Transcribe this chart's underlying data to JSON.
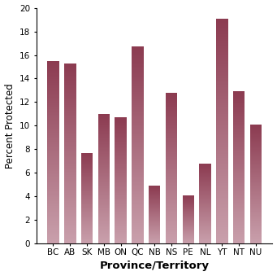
{
  "categories": [
    "BC",
    "AB",
    "SK",
    "MB",
    "ON",
    "QC",
    "NB",
    "NS",
    "PE",
    "NL",
    "YT",
    "NT",
    "NU"
  ],
  "values": [
    15.5,
    15.3,
    7.7,
    11.0,
    10.7,
    16.7,
    4.9,
    12.8,
    4.1,
    6.8,
    19.1,
    12.9,
    10.1
  ],
  "bar_color_top": "#8b3a50",
  "bar_color_bottom": "#c9a0ac",
  "xlabel": "Province/Territory",
  "ylabel": "Percent Protected",
  "ylim": [
    0,
    20
  ],
  "yticks": [
    0,
    2,
    4,
    6,
    8,
    10,
    12,
    14,
    16,
    18,
    20
  ],
  "xlabel_fontsize": 9.5,
  "ylabel_fontsize": 8.5,
  "tick_fontsize": 7.5,
  "bar_width": 0.7
}
